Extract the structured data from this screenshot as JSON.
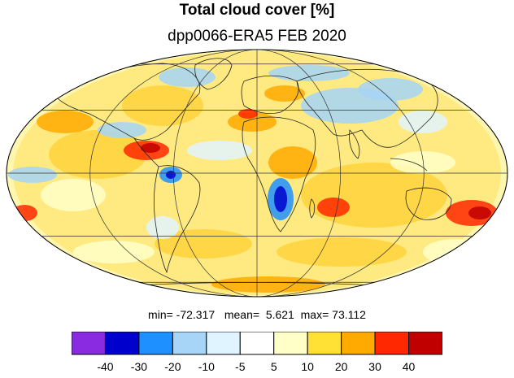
{
  "title": "Total cloud cover [%]",
  "subtitle": "dpp0066-ERA5 FEB 2020",
  "stats": {
    "min_label": "min=",
    "min_value": "-72.317",
    "mean_label": "mean=",
    "mean_value": "5.621",
    "max_label": "max=",
    "max_value": "73.112"
  },
  "map": {
    "projection": "Mollweide",
    "graticule": true,
    "coastlines": true
  },
  "colorbar": {
    "colors": [
      "#8a2be2",
      "#0000cd",
      "#1e90ff",
      "#a6d5f7",
      "#e0f4ff",
      "#ffffff",
      "#ffffc8",
      "#ffe135",
      "#ffaa00",
      "#ff2800",
      "#c00000"
    ],
    "ticks": [
      "-40",
      "-30",
      "-20",
      "-10",
      "-5",
      "5",
      "10",
      "20",
      "30",
      "40"
    ]
  }
}
